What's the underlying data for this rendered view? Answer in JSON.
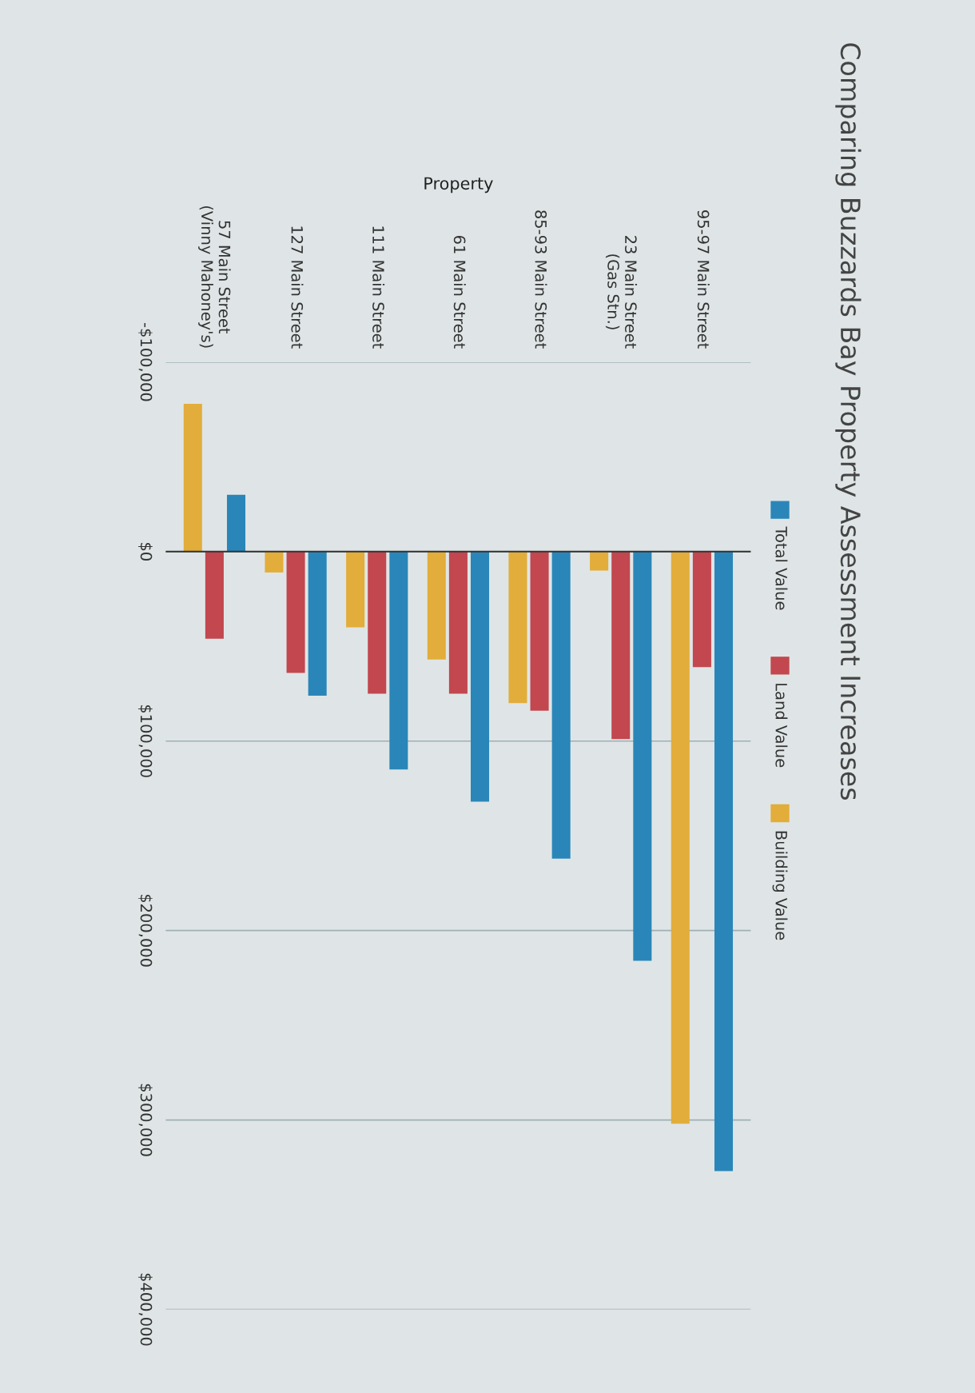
{
  "chart_data": {
    "type": "bar",
    "title": "Comparing Buzzards Bay Property Assessment Increases",
    "xlabel": "Property",
    "categories": [
      "57 Main Street\n(Vinny Mahoney's)",
      "127 Main Street",
      "111 Main Street",
      "61 Main Street",
      "85-93 Main Street",
      "23 Main Street\n(Gas Stn.)",
      "95-97 Main Street"
    ],
    "series": [
      {
        "name": "Total Value",
        "color": "#2a86b8",
        "values": [
          -30000,
          76000,
          115000,
          132000,
          162000,
          216000,
          327000
        ]
      },
      {
        "name": "Land Value",
        "color": "#c2474f",
        "values": [
          46000,
          64000,
          75000,
          75000,
          84000,
          99000,
          61000
        ]
      },
      {
        "name": "Building Value",
        "color": "#e2ad3a",
        "values": [
          -78000,
          11000,
          40000,
          57000,
          80000,
          10000,
          302000
        ]
      }
    ],
    "ylim": [
      400000,
      -100000
    ],
    "yticks": [
      {
        "value": -100000,
        "label": "-$100,000"
      },
      {
        "value": 0,
        "label": "$0"
      },
      {
        "value": 100000,
        "label": "$100,000"
      },
      {
        "value": 200000,
        "label": "$200,000"
      },
      {
        "value": 300000,
        "label": "$300,000"
      },
      {
        "value": 400000,
        "label": "$400,000"
      }
    ],
    "grid": "y",
    "legend": "right"
  }
}
